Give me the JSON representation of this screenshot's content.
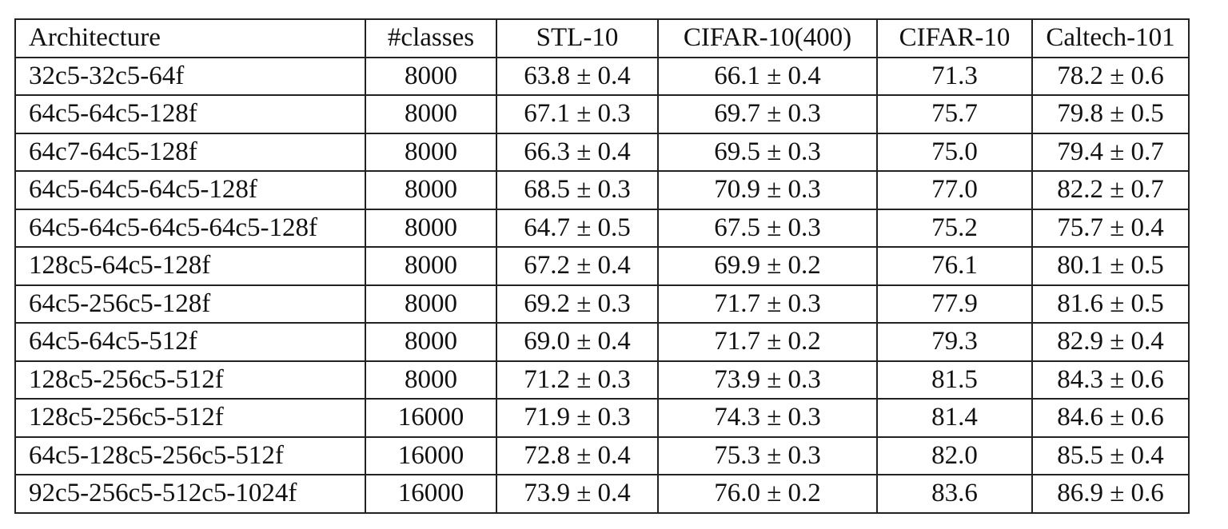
{
  "table": {
    "headers": [
      "Architecture",
      "#classes",
      "STL-10",
      "CIFAR-10(400)",
      "CIFAR-10",
      "Caltech-101"
    ],
    "rows": [
      [
        "32c5-32c5-64f",
        "8000",
        "63.8 ± 0.4",
        "66.1 ± 0.4",
        "71.3",
        "78.2 ± 0.6"
      ],
      [
        "64c5-64c5-128f",
        "8000",
        "67.1 ± 0.3",
        "69.7 ± 0.3",
        "75.7",
        "79.8 ± 0.5"
      ],
      [
        "64c7-64c5-128f",
        "8000",
        "66.3 ± 0.4",
        "69.5 ± 0.3",
        "75.0",
        "79.4 ± 0.7"
      ],
      [
        "64c5-64c5-64c5-128f",
        "8000",
        "68.5 ± 0.3",
        "70.9 ± 0.3",
        "77.0",
        "82.2 ± 0.7"
      ],
      [
        "64c5-64c5-64c5-64c5-128f",
        "8000",
        "64.7 ± 0.5",
        "67.5 ± 0.3",
        "75.2",
        "75.7 ± 0.4"
      ],
      [
        "128c5-64c5-128f",
        "8000",
        "67.2 ± 0.4",
        "69.9 ± 0.2",
        "76.1",
        "80.1 ± 0.5"
      ],
      [
        "64c5-256c5-128f",
        "8000",
        "69.2 ± 0.3",
        "71.7 ± 0.3",
        "77.9",
        "81.6 ± 0.5"
      ],
      [
        "64c5-64c5-512f",
        "8000",
        "69.0 ± 0.4",
        "71.7 ± 0.2",
        "79.3",
        "82.9 ± 0.4"
      ],
      [
        "128c5-256c5-512f",
        "8000",
        "71.2 ± 0.3",
        "73.9 ± 0.3",
        "81.5",
        "84.3 ± 0.6"
      ],
      [
        "128c5-256c5-512f",
        "16000",
        "71.9 ± 0.3",
        "74.3 ± 0.3",
        "81.4",
        "84.6 ± 0.6"
      ],
      [
        "64c5-128c5-256c5-512f",
        "16000",
        "72.8 ± 0.4",
        "75.3 ± 0.3",
        "82.0",
        "85.5 ± 0.4"
      ],
      [
        "92c5-256c5-512c5-1024f",
        "16000",
        "73.9 ± 0.4",
        "76.0 ± 0.2",
        "83.6",
        "86.9 ± 0.6"
      ]
    ]
  }
}
